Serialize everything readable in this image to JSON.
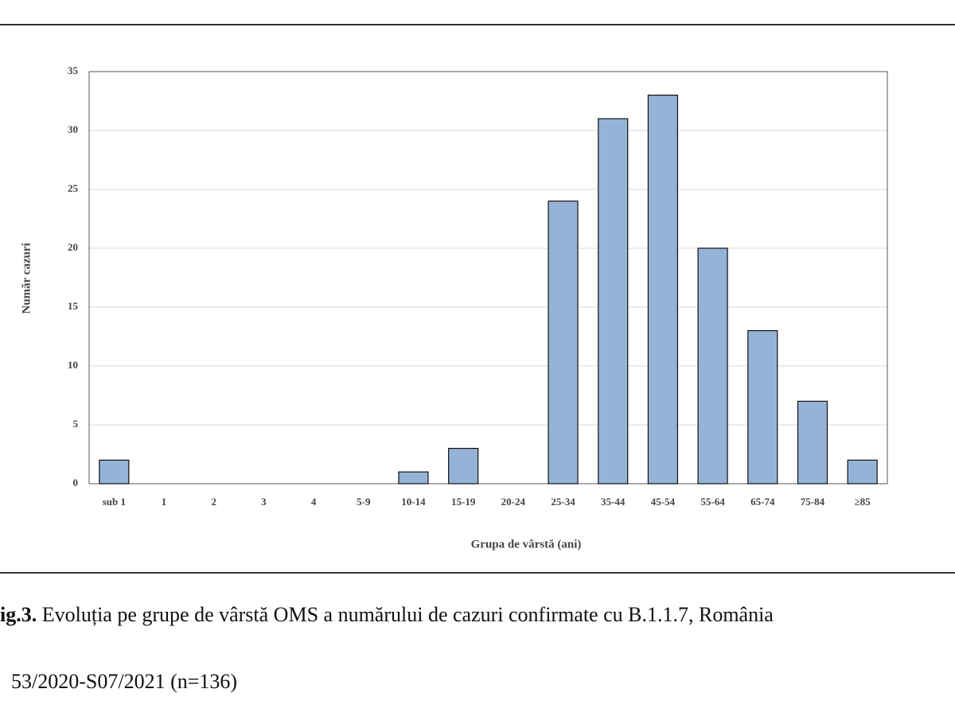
{
  "chart_data": {
    "type": "bar",
    "categories": [
      "sub 1",
      "1",
      "2",
      "3",
      "4",
      "5-9",
      "10-14",
      "15-19",
      "20-24",
      "25-34",
      "35-44",
      "45-54",
      "55-64",
      "65-74",
      "75-84",
      "≥85"
    ],
    "values": [
      2,
      0,
      0,
      0,
      0,
      0,
      1,
      3,
      0,
      24,
      31,
      33,
      20,
      13,
      7,
      2
    ],
    "color": "#95b3d7",
    "ylim": [
      0,
      35
    ],
    "yticks": [
      0,
      5,
      10,
      15,
      20,
      25,
      30,
      35
    ],
    "grid": true,
    "ylabel": "Număr cazuri",
    "xlabel": "Grupa de vârstă (ani)"
  },
  "caption": {
    "label": "ig.3.",
    "line1": "Evoluția pe grupe de vârstă OMS a numărului de cazuri confirmate cu B.1.1.7, România",
    "line2": "53/2020-S07/2021 (n=136)"
  }
}
